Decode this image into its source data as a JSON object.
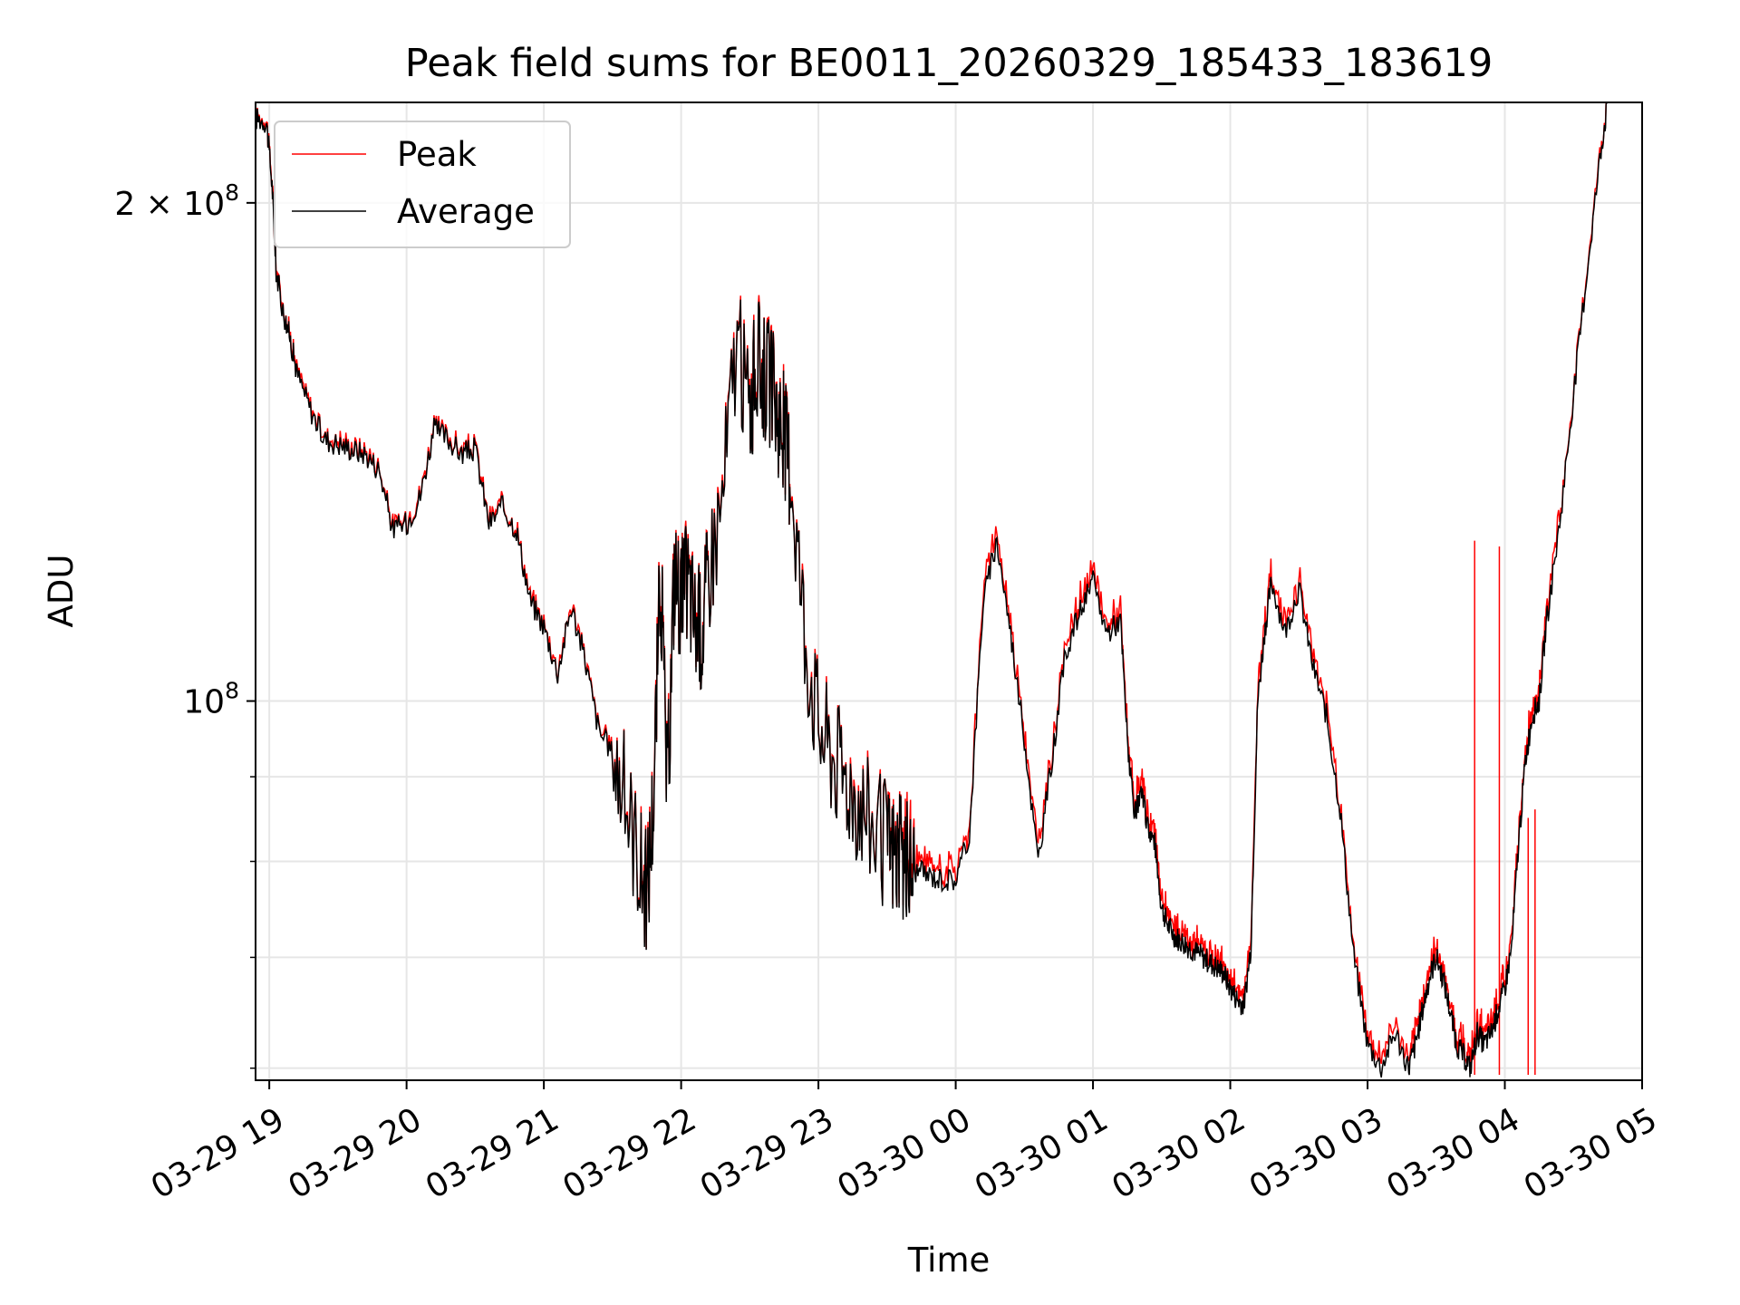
{
  "chart_data": {
    "type": "line",
    "title": "Peak field sums for BE0011_20260329_185433_183619",
    "xlabel": "Time",
    "ylabel": "ADU",
    "yscale": "log",
    "ylim": [
      59000000,
      230000000
    ],
    "xlim_hours": [
      -0.1,
      10.0
    ],
    "grid": true,
    "x_tick_labels": [
      "03-29 19",
      "03-29 20",
      "03-29 21",
      "03-29 22",
      "03-29 23",
      "03-30 00",
      "03-30 01",
      "03-30 02",
      "03-30 03",
      "03-30 04",
      "03-30 05"
    ],
    "x_tick_hours": [
      0,
      1,
      2,
      3,
      4,
      5,
      6,
      7,
      8,
      9,
      10
    ],
    "y_major_ticks": [
      {
        "value": 100000000,
        "base": "10",
        "exp": "8",
        "coef": ""
      },
      {
        "value": 200000000,
        "base": "10",
        "exp": "8",
        "coef": "2 × "
      }
    ],
    "y_minor_ticks": [
      60000000,
      70000000,
      80000000,
      90000000
    ],
    "legend": {
      "position": "top-left",
      "entries": [
        "Peak",
        "Average"
      ]
    },
    "colors": {
      "peak": "#ff0000",
      "average": "#000000"
    },
    "x_hours": [
      -0.1,
      -0.02,
      0.02,
      0.05,
      0.1,
      0.15,
      0.2,
      0.3,
      0.4,
      0.5,
      0.6,
      0.7,
      0.8,
      0.9,
      1.0,
      1.1,
      1.2,
      1.3,
      1.4,
      1.5,
      1.6,
      1.7,
      1.8,
      1.9,
      2.0,
      2.1,
      2.2,
      2.3,
      2.4,
      2.5,
      2.6,
      2.7,
      2.75,
      2.8,
      2.85,
      2.9,
      2.95,
      3.0,
      3.05,
      3.1,
      3.15,
      3.2,
      3.3,
      3.4,
      3.5,
      3.55,
      3.6,
      3.65,
      3.7,
      3.75,
      3.8,
      3.9,
      4.0,
      4.1,
      4.2,
      4.3,
      4.4,
      4.5,
      4.55,
      4.6,
      4.65,
      4.7,
      4.8,
      4.9,
      5.0,
      5.1,
      5.2,
      5.3,
      5.4,
      5.5,
      5.6,
      5.7,
      5.8,
      5.9,
      6.0,
      6.1,
      6.2,
      6.25,
      6.3,
      6.35,
      6.4,
      6.45,
      6.5,
      6.55,
      6.6,
      6.65,
      6.7,
      6.75,
      6.8,
      6.85,
      6.9,
      6.95,
      7.0,
      7.05,
      7.1,
      7.15,
      7.2,
      7.25,
      7.3,
      7.4,
      7.5,
      7.6,
      7.7,
      7.8,
      7.9,
      8.0,
      8.1,
      8.2,
      8.3,
      8.35,
      8.4,
      8.45,
      8.5,
      8.55,
      8.6,
      8.65,
      8.7,
      8.75,
      8.8,
      8.85,
      8.9,
      8.95,
      9.0,
      9.05,
      9.1,
      9.15,
      9.2,
      9.25,
      9.3,
      9.4,
      9.5,
      9.6,
      9.7,
      9.75
    ],
    "average": [
      225000000,
      224000000,
      205000000,
      182000000,
      172000000,
      166000000,
      158000000,
      150000000,
      144000000,
      143000000,
      142000000,
      141000000,
      138000000,
      127000000,
      128000000,
      133000000,
      146000000,
      144000000,
      141000000,
      142000000,
      128000000,
      131000000,
      127000000,
      115000000,
      111000000,
      104000000,
      114000000,
      106000000,
      96000000,
      93000000,
      87000000,
      80000000,
      76000000,
      88000000,
      120000000,
      87000000,
      120000000,
      115000000,
      118000000,
      112000000,
      110000000,
      120000000,
      132000000,
      165000000,
      150000000,
      160000000,
      158000000,
      155000000,
      150000000,
      145000000,
      138000000,
      110000000,
      97000000,
      93000000,
      90000000,
      87000000,
      84000000,
      81500000,
      81000000,
      80000000,
      79500000,
      79000000,
      78500000,
      78000000,
      78000000,
      83000000,
      115000000,
      125000000,
      110000000,
      95000000,
      80000000,
      92000000,
      107000000,
      113000000,
      118000000,
      110000000,
      112000000,
      95000000,
      85000000,
      88000000,
      84000000,
      82000000,
      75000000,
      73000000,
      72000000,
      71500000,
      71000000,
      70500000,
      70000000,
      69500000,
      69000000,
      68500000,
      67000000,
      66000000,
      65500000,
      71000000,
      100000000,
      110000000,
      118000000,
      110000000,
      117000000,
      105000000,
      98000000,
      86000000,
      70000000,
      62000000,
      60000000,
      63000000,
      60000000,
      62000000,
      65000000,
      68000000,
      70000000,
      68000000,
      65000000,
      62000000,
      61000000,
      60000000,
      63000000,
      62000000,
      63000000,
      65000000,
      67000000,
      71000000,
      82000000,
      92000000,
      98000000,
      100000000,
      111000000,
      128000000,
      153000000,
      182000000,
      215000000,
      230000000
    ]
  }
}
